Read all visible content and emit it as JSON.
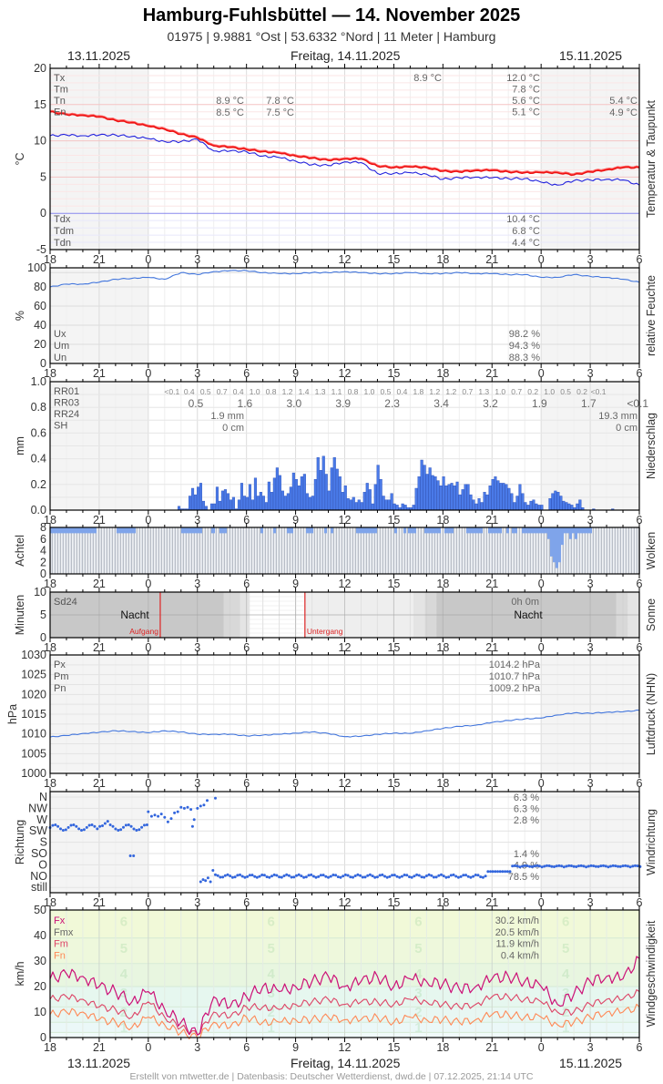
{
  "header": {
    "title": "Hamburg-Fuhlsbüttel  —  14. November 2025",
    "subtitle": "01975  |  9.9881 °Ost  |  53.6332 °Nord  |  11 Meter  |  Hamburg"
  },
  "dates": {
    "left": "13.11.2025",
    "center": "Freitag, 14.11.2025",
    "right": "15.11.2025"
  },
  "footer": "Erstellt von mtwetter.de | Datenbasis: Deutscher Wetterdienst, dwd.de | 07.12.2025, 21:14 UTC",
  "x_ticks": [
    "18",
    "21",
    "0",
    "3",
    "6",
    "9",
    "12",
    "15",
    "18",
    "21",
    "0",
    "3",
    "6"
  ],
  "colors": {
    "temp": "#ee1111",
    "dewpoint": "#2222dd",
    "humidity": "#4477dd",
    "precip_bar": "#4a7ae8",
    "cloud_fill": "#7fa4ea",
    "pressure": "#4477dd",
    "wind_dot": "#3366dd",
    "fx": "#cc1177",
    "fm": "#dd4466",
    "fn": "#ff8855",
    "night": "#f4f4f4",
    "sun_night": "#c8c8c8"
  },
  "chart_data": [
    {
      "id": "temperature",
      "type": "line",
      "title": "Temperatur & Taupunkt",
      "ylabel": "°C",
      "ylim": [
        -5,
        20
      ],
      "yticks": [
        "20",
        "15",
        "10",
        "5",
        "0",
        "-5"
      ],
      "x_hours": [
        18,
        19,
        20,
        21,
        22,
        23,
        0,
        1,
        2,
        3,
        4,
        5,
        6,
        7,
        8,
        9,
        10,
        11,
        12,
        13,
        14,
        15,
        16,
        17,
        18,
        19,
        20,
        21,
        22,
        23,
        0,
        1,
        2,
        3,
        4,
        5,
        6
      ],
      "series": [
        {
          "name": "Temperatur",
          "values": [
            14.0,
            13.6,
            13.5,
            13.3,
            12.8,
            12.5,
            12.0,
            11.6,
            10.9,
            10.4,
            9.3,
            9.1,
            8.8,
            8.5,
            8.3,
            7.9,
            7.6,
            7.3,
            7.5,
            7.5,
            6.5,
            6.3,
            6.4,
            6.3,
            5.8,
            5.7,
            5.9,
            5.9,
            5.7,
            5.6,
            5.6,
            5.6,
            5.3,
            5.7,
            6.0,
            6.3,
            6.3
          ]
        },
        {
          "name": "Taupunkt",
          "values": [
            10.7,
            10.8,
            10.7,
            10.8,
            10.8,
            10.6,
            10.3,
            9.9,
            9.9,
            10.2,
            8.6,
            8.6,
            8.5,
            7.9,
            7.7,
            7.2,
            6.7,
            6.6,
            7.1,
            7.0,
            5.5,
            5.5,
            5.6,
            5.4,
            4.7,
            4.9,
            5.0,
            4.9,
            4.8,
            4.8,
            4.3,
            3.9,
            4.5,
            4.6,
            4.7,
            4.6,
            3.9
          ]
        }
      ],
      "stats_day1": {
        "Tx": "",
        "Tm": "",
        "Tn": "8.9 °C",
        "En": "8.5 °C"
      },
      "stats_day2_top": {
        "col1": "7.8 °C",
        "col1b": "7.5 °C",
        "peak": "8.9 °C"
      },
      "stats": {
        "labels": [
          "Tx",
          "Tm",
          "Tn",
          "En"
        ],
        "values": [
          "12.0 °C",
          "7.8 °C",
          "5.6 °C",
          "5.1 °C"
        ],
        "next_day": [
          "5.4 °C",
          "4.9 °C"
        ],
        "dew_labels": [
          "Tdx",
          "Tdm",
          "Tdn"
        ],
        "dew_values": [
          "10.4 °C",
          "6.8 °C",
          "4.4 °C"
        ]
      }
    },
    {
      "id": "humidity",
      "type": "line",
      "title": "relative Feuchte",
      "ylabel": "%",
      "ylim": [
        0,
        100
      ],
      "yticks": [
        "100",
        "80",
        "60",
        "40",
        "20",
        "0"
      ],
      "x_hours": [
        18,
        19,
        20,
        21,
        22,
        23,
        0,
        1,
        2,
        3,
        4,
        5,
        6,
        7,
        8,
        9,
        10,
        11,
        12,
        13,
        14,
        15,
        16,
        17,
        18,
        19,
        20,
        21,
        22,
        23,
        0,
        1,
        2,
        3,
        4,
        5,
        6
      ],
      "series": [
        {
          "name": "rel. Feuchte",
          "values": [
            80,
            83,
            83,
            85,
            88,
            89,
            90,
            88,
            95,
            93,
            96,
            97,
            97,
            95,
            94,
            94,
            95,
            95,
            96,
            95,
            94,
            94,
            95,
            94,
            94,
            95,
            94,
            94,
            93,
            93,
            90,
            90,
            93,
            91,
            90,
            88,
            85
          ]
        }
      ],
      "stats": {
        "labels": [
          "Ux",
          "Um",
          "Un"
        ],
        "values": [
          "98.2 %",
          "94.3 %",
          "88.3 %"
        ]
      }
    },
    {
      "id": "precipitation",
      "type": "bar",
      "title": "Niederschlag",
      "ylabel": "mm",
      "ylim": [
        0,
        1.0
      ],
      "yticks": [
        "1.0",
        "0.8",
        "0.6",
        "0.4",
        "0.2",
        "0.0"
      ],
      "bin_minutes": 10,
      "start_hour_offset": 7.8,
      "values": [
        0.03,
        0.01,
        0.01,
        0.01,
        0.11,
        0.17,
        0.12,
        0.18,
        0.21,
        0.07,
        0.03,
        0.0,
        0.05,
        0.05,
        0.18,
        0.07,
        0.15,
        0.16,
        0.13,
        0.08,
        0.1,
        0.01,
        0.08,
        0.21,
        0.11,
        0.1,
        0.2,
        0.08,
        0.25,
        0.11,
        0.14,
        0.11,
        0.06,
        0.22,
        0.14,
        0.25,
        0.33,
        0.27,
        0.15,
        0.11,
        0.13,
        0.18,
        0.29,
        0.24,
        0.19,
        0.26,
        0.28,
        0.13,
        0.1,
        0.11,
        0.24,
        0.41,
        0.31,
        0.42,
        0.28,
        0.15,
        0.33,
        0.41,
        0.32,
        0.26,
        0.14,
        0.19,
        0.09,
        0.08,
        0.1,
        0.06,
        0.08,
        0.06,
        0.14,
        0.21,
        0.16,
        0.05,
        0.2,
        0.35,
        0.24,
        0.11,
        0.08,
        0.08,
        0.13,
        0.05,
        0.04,
        0.02,
        0.05,
        0.04,
        0.02,
        0.02,
        0.04,
        0.17,
        0.26,
        0.39,
        0.35,
        0.28,
        0.33,
        0.27,
        0.26,
        0.23,
        0.19,
        0.26,
        0.19,
        0.2,
        0.21,
        0.19,
        0.22,
        0.12,
        0.16,
        0.2,
        0.2,
        0.12,
        0.08,
        0.05,
        0.09,
        0.06,
        0.14,
        0.12,
        0.19,
        0.24,
        0.26,
        0.23,
        0.21,
        0.21,
        0.2,
        0.17,
        0.13,
        0.06,
        0.11,
        0.2,
        0.13,
        0.06,
        0.04,
        0.07,
        0.08,
        0.05,
        0.04,
        0.04,
        0.0,
        0.0,
        0.09,
        0.13,
        0.15,
        0.14,
        0.11,
        0.07,
        0.06,
        0.05,
        0.04,
        0.02,
        0.05,
        0.08,
        0.02,
        0.0,
        0.0,
        0.0,
        0.01,
        0.0,
        0.0,
        0.0,
        0.0,
        0.0,
        0.0,
        0.01
      ],
      "rr01_labels": [
        "<0.1",
        "0.4",
        "0.5",
        "0.7",
        "0.4",
        "1.0",
        "0.8",
        "1.2",
        "1.4",
        "1.3",
        "1.1",
        "0.8",
        "1.0",
        "0.5",
        "0.4",
        "1.8",
        "1.2",
        "1.2",
        "0.7",
        "1.3",
        "1.0",
        "0.7",
        "0.2",
        "1.0",
        "0.5",
        "0.2",
        "<0.1"
      ],
      "rr03_labels": [
        "0.5",
        "1.6",
        "3.0",
        "3.9",
        "2.3",
        "3.4",
        "3.2",
        "1.9",
        "1.7",
        "<0.1"
      ],
      "stats": {
        "labels": [
          "RR01",
          "RR03",
          "RR24",
          "SH"
        ],
        "rr24_day1": "1.9 mm",
        "sh_day1": "0 cm",
        "rr24_day2": "19.3 mm",
        "sh_day2": "0 cm"
      }
    },
    {
      "id": "clouds",
      "type": "bar",
      "title": "Wolken",
      "ylabel": "Achtel",
      "ylim": [
        0,
        8
      ],
      "yticks": [
        "8",
        "6",
        "4",
        "2",
        "0"
      ]
    },
    {
      "id": "sunshine",
      "type": "bar",
      "title": "Sonne",
      "ylabel": "Minuten",
      "ylim": [
        0,
        10
      ],
      "yticks": [
        "10",
        "5",
        "0"
      ],
      "labels": {
        "sd24": "Sd24",
        "sd24_value": "0h 0m",
        "night": "Nacht",
        "sunrise": "Aufgang",
        "sunset": "Untergang"
      },
      "sunrise_hour": 6.73,
      "sunset_hour": 15.57
    },
    {
      "id": "pressure",
      "type": "line",
      "title": "Luftdruck (NHN)",
      "ylabel": "hPa",
      "ylim": [
        1000,
        1030
      ],
      "yticks": [
        "1030",
        "1025",
        "1020",
        "1015",
        "1010",
        "1005",
        "1000"
      ],
      "x_hours": [
        18,
        19,
        20,
        21,
        22,
        23,
        0,
        1,
        2,
        3,
        4,
        5,
        6,
        7,
        8,
        9,
        10,
        11,
        12,
        13,
        14,
        15,
        16,
        17,
        18,
        19,
        20,
        21,
        22,
        23,
        0,
        1,
        2,
        3,
        4,
        5,
        6
      ],
      "series": [
        {
          "name": "Luftdruck",
          "values": [
            1009.2,
            1009.6,
            1010.1,
            1010.4,
            1010.8,
            1010.6,
            1010.3,
            1010.8,
            1010.5,
            1009.9,
            1009.9,
            1009.9,
            1009.5,
            1009.7,
            1009.9,
            1010.2,
            1010.5,
            1010.1,
            1009.3,
            1009.4,
            1009.9,
            1010.2,
            1010.1,
            1010.8,
            1011.4,
            1011.9,
            1012.2,
            1012.9,
            1013.4,
            1013.8,
            1014.0,
            1014.8,
            1015.3,
            1015.2,
            1015.5,
            1015.6,
            1016.0
          ]
        }
      ],
      "stats": {
        "labels": [
          "Px",
          "Pm",
          "Pn"
        ],
        "values": [
          "1014.2 hPa",
          "1010.7 hPa",
          "1009.2 hPa"
        ]
      }
    },
    {
      "id": "wind_direction",
      "type": "scatter",
      "title": "Windrichtung",
      "ylabel": "Richtung",
      "yticks": [
        "N",
        "NW",
        "W",
        "SW",
        "S",
        "SO",
        "O",
        "NO",
        "still"
      ],
      "stats": {
        "values": [
          "6.3 %",
          "6.3 %",
          "2.8 %",
          "",
          "",
          "1.4 %",
          "4.9 %",
          "78.5 %"
        ]
      }
    },
    {
      "id": "wind_speed",
      "type": "line",
      "title": "Windgeschwindigkeit",
      "ylabel": "km/h",
      "ylim": [
        0,
        50
      ],
      "yticks": [
        "50",
        "40",
        "30",
        "20",
        "10",
        "0"
      ],
      "beaufort_labels": [
        "6",
        "5",
        "4",
        "3",
        "2",
        "1"
      ],
      "x_hours": [
        18,
        19,
        20,
        21,
        22,
        23,
        0,
        1,
        2,
        3,
        4,
        5,
        6,
        7,
        8,
        9,
        10,
        11,
        12,
        13,
        14,
        15,
        16,
        17,
        18,
        19,
        20,
        21,
        22,
        23,
        0,
        1,
        2,
        3,
        4,
        5,
        6
      ],
      "series": [
        {
          "name": "Fx",
          "values": [
            23,
            25,
            24,
            20,
            18,
            14,
            18,
            11,
            6,
            1,
            16,
            12,
            16,
            20,
            18,
            20,
            22,
            24,
            20,
            22,
            24,
            20,
            23,
            22,
            21,
            19,
            20,
            23,
            24,
            22,
            20,
            13,
            17,
            22,
            24,
            23,
            31
          ]
        },
        {
          "name": "Fm",
          "values": [
            15,
            16,
            15,
            12,
            11,
            8,
            14,
            8,
            4,
            1,
            10,
            8,
            12,
            12,
            11,
            13,
            14,
            15,
            13,
            14,
            14,
            13,
            15,
            14,
            13,
            12,
            13,
            16,
            16,
            15,
            14,
            10,
            10,
            13,
            15,
            15,
            18
          ]
        },
        {
          "name": "Fn",
          "values": [
            9,
            10,
            10,
            7,
            6,
            4,
            8,
            5,
            2,
            0,
            6,
            4,
            8,
            6,
            6,
            7,
            7,
            8,
            7,
            7,
            8,
            6,
            8,
            7,
            7,
            6,
            7,
            9,
            9,
            8,
            8,
            5,
            6,
            8,
            10,
            10,
            12
          ]
        }
      ],
      "stats": {
        "labels": [
          "Fx",
          "Fmx",
          "Fm",
          "Fn"
        ],
        "values": [
          "30.2 km/h",
          "20.5 km/h",
          "11.9 km/h",
          "0.4 km/h"
        ]
      }
    }
  ]
}
